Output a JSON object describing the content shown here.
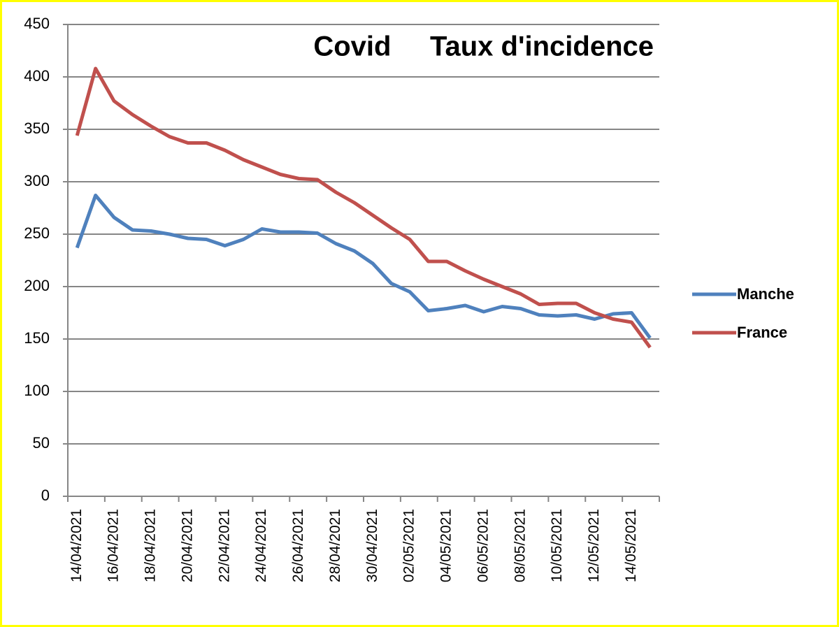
{
  "chart_data": {
    "type": "line",
    "title": "Covid     Taux d'incidence",
    "categories": [
      "14/04/2021",
      null,
      "16/04/2021",
      null,
      "18/04/2021",
      null,
      "20/04/2021",
      null,
      "22/04/2021",
      null,
      "24/04/2021",
      null,
      "26/04/2021",
      null,
      "28/04/2021",
      null,
      "30/04/2021",
      null,
      "02/05/2021",
      null,
      "04/05/2021",
      null,
      "06/05/2021",
      null,
      "08/05/2021",
      null,
      "10/05/2021",
      null,
      "12/05/2021",
      null,
      "14/05/2021",
      null
    ],
    "series": [
      {
        "name": "Manche",
        "color": "#4f81bd",
        "values": [
          237,
          287,
          266,
          254,
          253,
          250,
          246,
          245,
          239,
          245,
          255,
          252,
          252,
          251,
          241,
          234,
          222,
          203,
          195,
          177,
          179,
          182,
          176,
          181,
          179,
          173,
          172,
          173,
          169,
          174,
          175,
          151
        ]
      },
      {
        "name": "France",
        "color": "#c0504d",
        "values": [
          344,
          408,
          377,
          364,
          353,
          343,
          337,
          337,
          330,
          321,
          314,
          307,
          303,
          302,
          290,
          280,
          268,
          256,
          245,
          224,
          224,
          215,
          207,
          200,
          193,
          183,
          184,
          184,
          175,
          169,
          166,
          142
        ]
      }
    ],
    "ylim": [
      0,
      450
    ],
    "yticks": [
      0,
      50,
      100,
      150,
      200,
      250,
      300,
      350,
      400,
      450
    ],
    "grid": true,
    "legend": "right"
  }
}
